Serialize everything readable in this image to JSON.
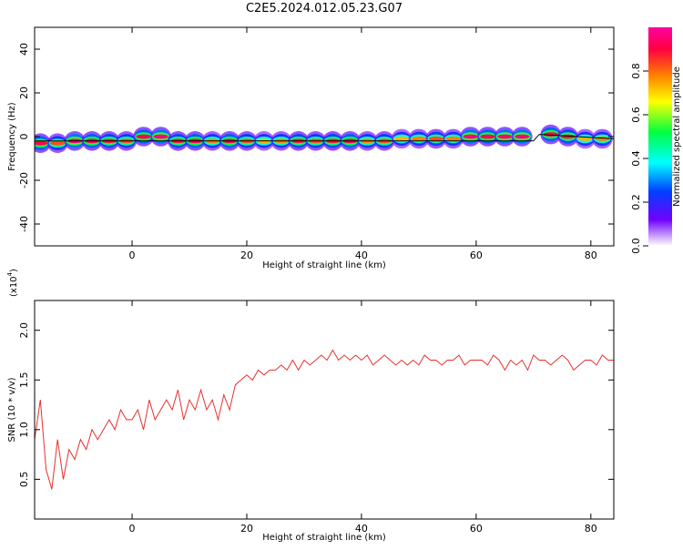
{
  "title": "C2E5.2024.012.05.23.G07",
  "colors": {
    "snr_line": "#e8302e",
    "track_line": "#000000",
    "axes": "#000000"
  },
  "chart_data": [
    {
      "type": "heatmap",
      "xlabel": "Height of straight line (km)",
      "ylabel": "Frequency (Hz)",
      "xlim": [
        -17,
        84
      ],
      "ylim": [
        -50,
        50
      ],
      "x_ticks": [
        0,
        20,
        40,
        60,
        80
      ],
      "y_ticks": [
        -40,
        -20,
        0,
        20,
        40
      ],
      "track": {
        "x": [
          -17,
          70,
          71,
          84
        ],
        "y": [
          -2,
          -2,
          1,
          -1
        ]
      },
      "cells": [
        {
          "x": -16,
          "y": -3,
          "v": 0.9
        },
        {
          "x": -13,
          "y": -3,
          "v": 0.8
        },
        {
          "x": -10,
          "y": -2,
          "v": 0.95
        },
        {
          "x": -7,
          "y": -2,
          "v": 0.9
        },
        {
          "x": -4,
          "y": -2,
          "v": 0.85
        },
        {
          "x": -1,
          "y": -2,
          "v": 0.8
        },
        {
          "x": 2,
          "y": 0,
          "v": 0.9
        },
        {
          "x": 5,
          "y": 0,
          "v": 0.95
        },
        {
          "x": 8,
          "y": -2,
          "v": 0.85
        },
        {
          "x": 11,
          "y": -2,
          "v": 0.9
        },
        {
          "x": 14,
          "y": -2,
          "v": 0.75
        },
        {
          "x": 17,
          "y": -2,
          "v": 0.9
        },
        {
          "x": 20,
          "y": -2,
          "v": 0.8
        },
        {
          "x": 23,
          "y": -2,
          "v": 0.7
        },
        {
          "x": 26,
          "y": -2,
          "v": 0.75
        },
        {
          "x": 29,
          "y": -2,
          "v": 0.85
        },
        {
          "x": 32,
          "y": -2,
          "v": 0.8
        },
        {
          "x": 35,
          "y": -2,
          "v": 0.85
        },
        {
          "x": 38,
          "y": -2,
          "v": 0.9
        },
        {
          "x": 41,
          "y": -2,
          "v": 0.75
        },
        {
          "x": 44,
          "y": -2,
          "v": 0.8
        },
        {
          "x": 47,
          "y": -1,
          "v": 0.7
        },
        {
          "x": 50,
          "y": -1,
          "v": 0.75
        },
        {
          "x": 53,
          "y": -1,
          "v": 0.8
        },
        {
          "x": 56,
          "y": -1,
          "v": 0.75
        },
        {
          "x": 59,
          "y": 0,
          "v": 0.95
        },
        {
          "x": 62,
          "y": 0,
          "v": 0.9
        },
        {
          "x": 65,
          "y": 0,
          "v": 0.95
        },
        {
          "x": 68,
          "y": 0,
          "v": 0.95
        },
        {
          "x": 73,
          "y": 1,
          "v": 0.9
        },
        {
          "x": 76,
          "y": 0,
          "v": 0.85
        },
        {
          "x": 79,
          "y": -1,
          "v": 0.7
        },
        {
          "x": 82,
          "y": -1,
          "v": 0.75
        }
      ],
      "colorbar": {
        "label": "Normalized spectral amplitude",
        "range": [
          0,
          1
        ],
        "ticks": [
          "0.0",
          "0.2",
          "0.4",
          "0.6",
          "0.8"
        ],
        "colors": [
          "#ffffff",
          "#7000ff",
          "#0040ff",
          "#00ffff",
          "#00ff40",
          "#ffff00",
          "#ff8000",
          "#ff0040",
          "#ff00a0"
        ]
      }
    },
    {
      "type": "line",
      "xlabel": "Height of straight line (km)",
      "ylabel": "SNR (10 * v/v)",
      "y_multiplier": "(x10",
      "y_multiplier_exp": "4",
      "y_multiplier_close": ")",
      "xlim": [
        -17,
        84
      ],
      "ylim": [
        0.1,
        2.3
      ],
      "x_ticks": [
        0,
        20,
        40,
        60,
        80
      ],
      "y_ticks": [
        0.5,
        1.0,
        1.5,
        2.0
      ],
      "series": [
        {
          "x": [
            -17,
            -16,
            -15,
            -14,
            -13,
            -12,
            -11,
            -10,
            -9,
            -8,
            -7,
            -6,
            -5,
            -4,
            -3,
            -2,
            -1,
            0,
            1,
            2,
            3,
            4,
            5,
            6,
            7,
            8,
            9,
            10,
            11,
            12,
            13,
            14,
            15,
            16,
            17,
            18,
            19,
            20,
            21,
            22,
            23,
            24,
            25,
            26,
            27,
            28,
            29,
            30,
            31,
            32,
            33,
            34,
            35,
            36,
            37,
            38,
            39,
            40,
            41,
            42,
            43,
            44,
            45,
            46,
            47,
            48,
            49,
            50,
            51,
            52,
            53,
            54,
            55,
            56,
            57,
            58,
            59,
            60,
            61,
            62,
            63,
            64,
            65,
            66,
            67,
            68,
            69,
            70,
            71,
            72,
            73,
            74,
            75,
            76,
            77,
            78,
            79,
            80,
            81,
            82,
            83,
            84
          ],
          "y": [
            0.9,
            1.3,
            0.6,
            0.4,
            0.9,
            0.5,
            0.8,
            0.7,
            0.9,
            0.8,
            1.0,
            0.9,
            1.0,
            1.1,
            1.0,
            1.2,
            1.1,
            1.1,
            1.2,
            1.0,
            1.3,
            1.1,
            1.2,
            1.3,
            1.2,
            1.4,
            1.1,
            1.3,
            1.2,
            1.4,
            1.2,
            1.3,
            1.1,
            1.35,
            1.2,
            1.45,
            1.5,
            1.55,
            1.5,
            1.6,
            1.55,
            1.6,
            1.6,
            1.65,
            1.6,
            1.7,
            1.6,
            1.7,
            1.65,
            1.7,
            1.75,
            1.7,
            1.8,
            1.7,
            1.75,
            1.7,
            1.75,
            1.7,
            1.75,
            1.65,
            1.7,
            1.75,
            1.7,
            1.65,
            1.7,
            1.65,
            1.7,
            1.65,
            1.75,
            1.7,
            1.7,
            1.65,
            1.7,
            1.7,
            1.75,
            1.65,
            1.7,
            1.7,
            1.7,
            1.65,
            1.75,
            1.7,
            1.6,
            1.7,
            1.65,
            1.7,
            1.6,
            1.75,
            1.7,
            1.7,
            1.65,
            1.7,
            1.75,
            1.7,
            1.6,
            1.65,
            1.7,
            1.7,
            1.65,
            1.75,
            1.7,
            1.7
          ]
        }
      ]
    }
  ]
}
